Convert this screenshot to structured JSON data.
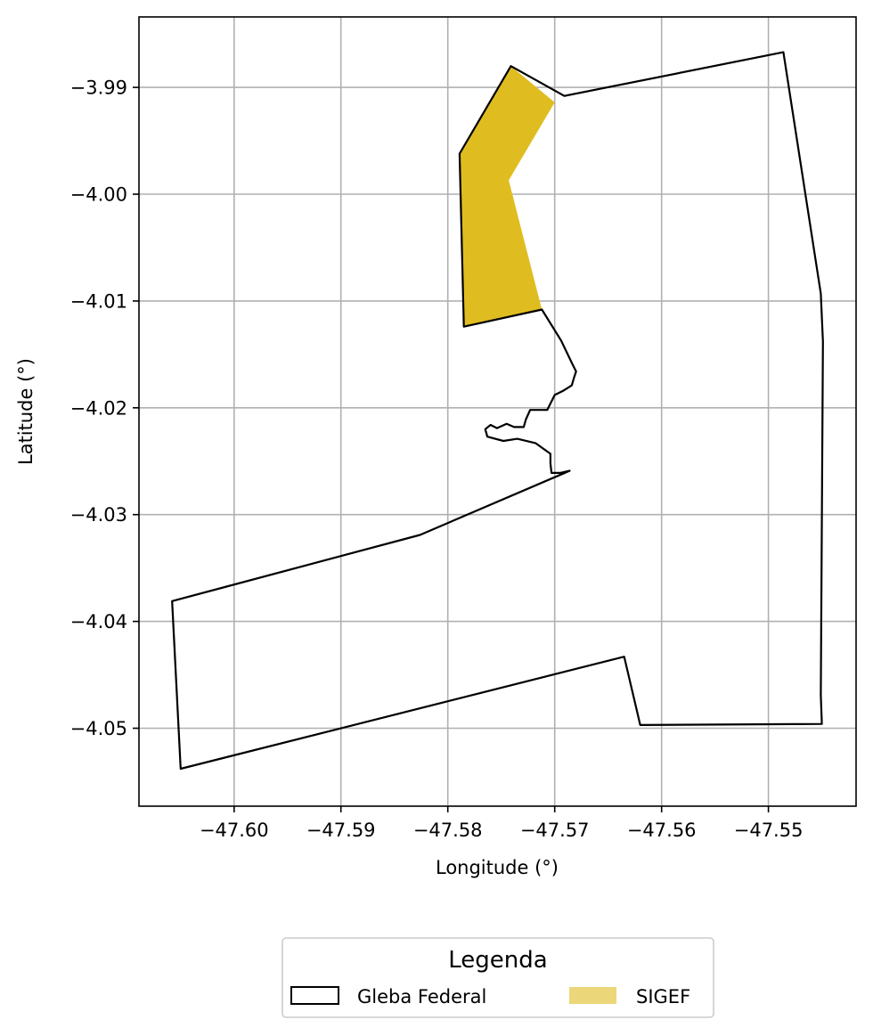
{
  "chart_data": {
    "type": "map",
    "xlabel": "Longitude (°)",
    "ylabel": "Latitude (°)",
    "xlim": [
      -47.6089,
      -47.5418
    ],
    "ylim": [
      -4.0573,
      -3.9834
    ],
    "grid": true,
    "xticks": [
      -47.6,
      -47.59,
      -47.58,
      -47.57,
      -47.56,
      -47.55
    ],
    "xtick_labels": [
      "−47.60",
      "−47.59",
      "−47.58",
      "−47.57",
      "−47.56",
      "−47.55"
    ],
    "yticks": [
      -3.99,
      -4.0,
      -4.01,
      -4.02,
      -4.03,
      -4.04,
      -4.05
    ],
    "ytick_labels": [
      "−3.99",
      "−4.00",
      "−4.01",
      "−4.02",
      "−4.03",
      "−4.04",
      "−4.05"
    ],
    "layers": [
      {
        "name": "Gleba Federal",
        "style": "outline",
        "color": "#000000",
        "coordinates": [
          [
            -47.5741,
            -3.988
          ],
          [
            -47.5691,
            -3.9908
          ],
          [
            -47.5486,
            -3.9867
          ],
          [
            -47.5451,
            -4.0093
          ],
          [
            -47.5449,
            -4.0138
          ],
          [
            -47.5451,
            -4.0469
          ],
          [
            -47.545,
            -4.0496
          ],
          [
            -47.562,
            -4.0497
          ],
          [
            -47.5635,
            -4.0433
          ],
          [
            -47.605,
            -4.0538
          ],
          [
            -47.6058,
            -4.0381
          ],
          [
            -47.5826,
            -4.0319
          ],
          [
            -47.5686,
            -4.0259
          ],
          [
            -47.5695,
            -4.0261
          ],
          [
            -47.5703,
            -4.0261
          ],
          [
            -47.5704,
            -4.0252
          ],
          [
            -47.5704,
            -4.0243
          ],
          [
            -47.5718,
            -4.0233
          ],
          [
            -47.5735,
            -4.0229
          ],
          [
            -47.5748,
            -4.0231
          ],
          [
            -47.5763,
            -4.0227
          ],
          [
            -47.5765,
            -4.022
          ],
          [
            -47.576,
            -4.0216
          ],
          [
            -47.5754,
            -4.0219
          ],
          [
            -47.5745,
            -4.0215
          ],
          [
            -47.5738,
            -4.0218
          ],
          [
            -47.5729,
            -4.0218
          ],
          [
            -47.5727,
            -4.0211
          ],
          [
            -47.5723,
            -4.0202
          ],
          [
            -47.5714,
            -4.0202
          ],
          [
            -47.5707,
            -4.0202
          ],
          [
            -47.5703,
            -4.0194
          ],
          [
            -47.57,
            -4.0188
          ],
          [
            -47.5692,
            -4.0184
          ],
          [
            -47.5684,
            -4.0179
          ],
          [
            -47.5682,
            -4.0172
          ],
          [
            -47.568,
            -4.0166
          ],
          [
            -47.5684,
            -4.0158
          ],
          [
            -47.5694,
            -4.0137
          ],
          [
            -47.5712,
            -4.0108
          ],
          [
            -47.5785,
            -4.0124
          ],
          [
            -47.5789,
            -3.9962
          ],
          [
            -47.5741,
            -3.988
          ]
        ]
      },
      {
        "name": "SIGEF",
        "style": "fill",
        "color": "#DFBD20",
        "legend_color": "#EBD679",
        "coordinates": [
          [
            -47.5741,
            -3.988
          ],
          [
            -47.57,
            -3.9914
          ],
          [
            -47.5743,
            -3.9987
          ],
          [
            -47.5712,
            -4.0108
          ],
          [
            -47.5785,
            -4.0124
          ],
          [
            -47.5789,
            -3.9962
          ],
          [
            -47.5741,
            -3.988
          ]
        ]
      }
    ],
    "legend": {
      "title": "Legenda",
      "placement": "bottom-center, below plot",
      "entries": [
        "Gleba Federal",
        "SIGEF"
      ]
    }
  }
}
